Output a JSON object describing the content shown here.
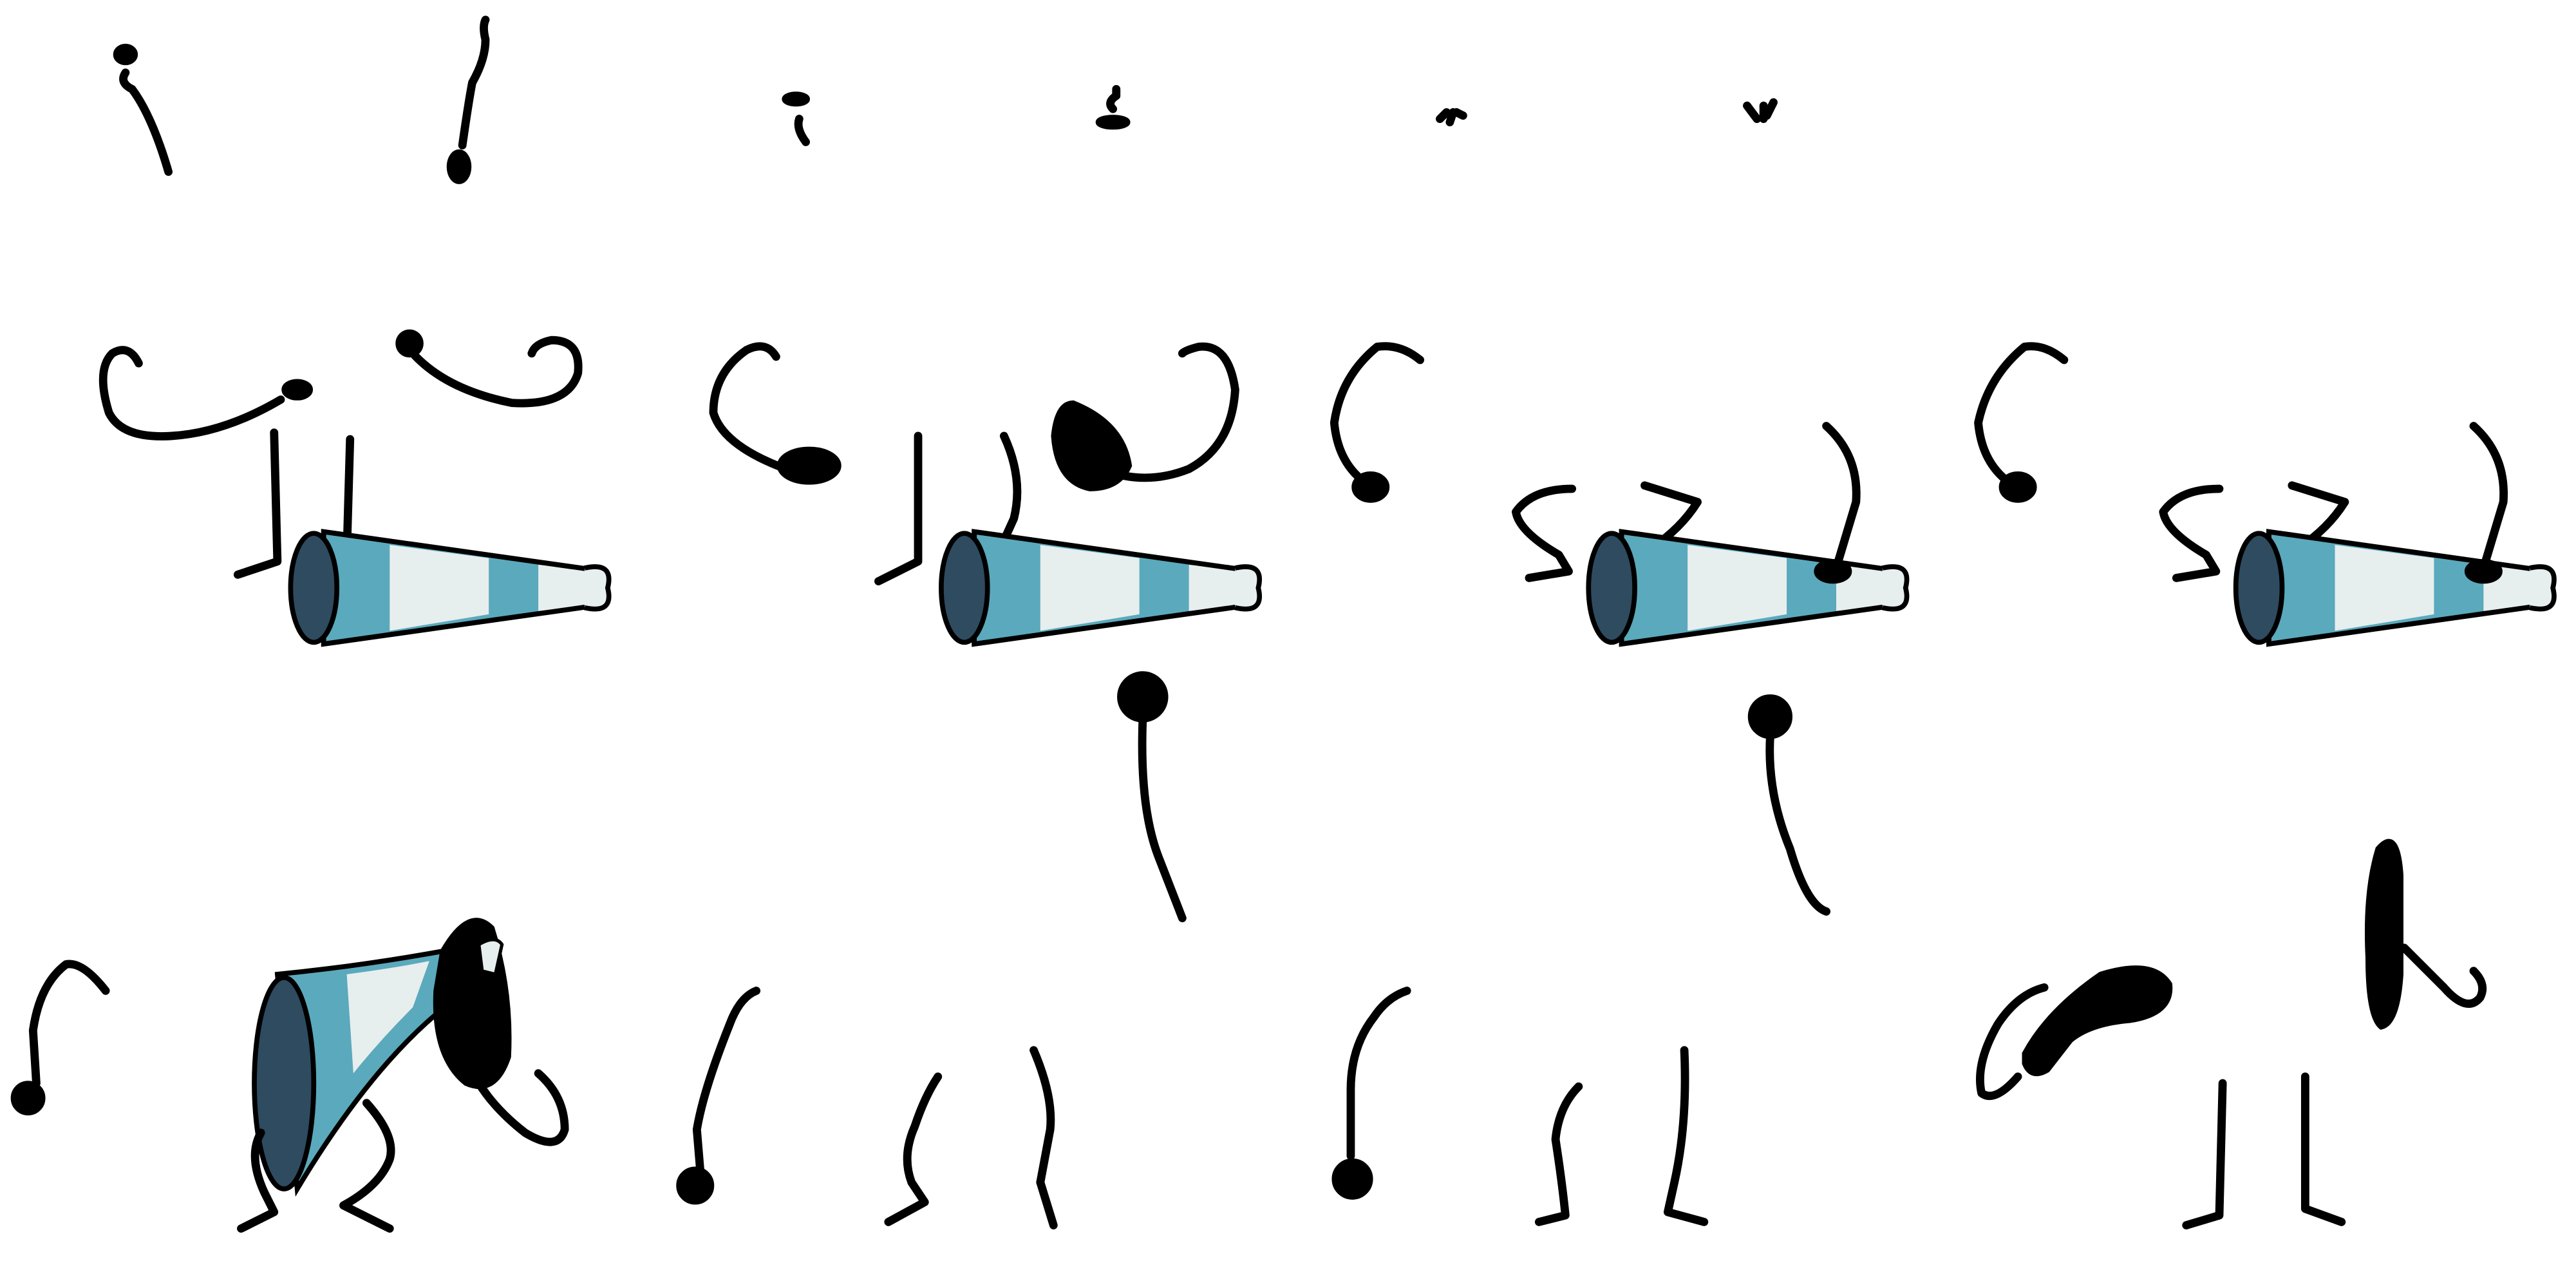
{
  "sheet": {
    "kind": "sprite-sheet",
    "background": "#ffffff",
    "palette": {
      "outline": "#000000",
      "horn_dark": "#2e4b60",
      "horn_mid": "#5ba9bc",
      "horn_light": "#e7eeee"
    },
    "rows": [
      {
        "row": 1,
        "content": "small-particle-sprites",
        "frames": 6
      },
      {
        "row": 2,
        "content": "megaphone-character-frames",
        "frames": 4
      },
      {
        "row": 3,
        "content": "megaphone-character-frames",
        "frames": 4
      }
    ]
  }
}
